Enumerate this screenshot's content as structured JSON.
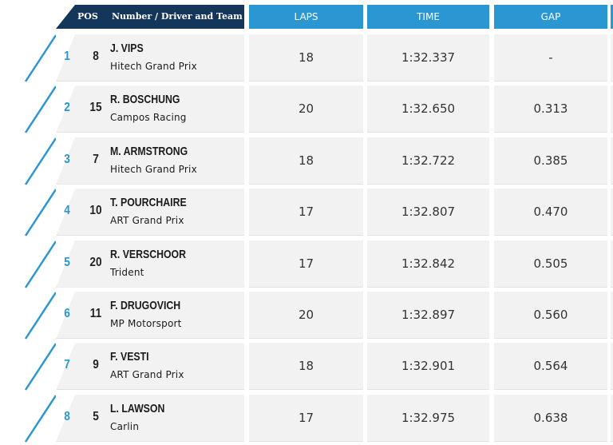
{
  "header": {
    "pos_label": "POS",
    "number_driver_team_label": "Number / Driver and Team",
    "laps_label": "LAPS",
    "time_label": "TIME",
    "gap_label": "GAP"
  },
  "colors": {
    "header_dark": "#13365a",
    "header_blue": "#2a97d3",
    "row_bg": "#f2f2f2",
    "accent": "#2a97d3"
  },
  "rows": [
    {
      "pos": "1",
      "number": "8",
      "driver": "J. VIPS",
      "team": "Hitech Grand Prix",
      "laps": "18",
      "time": "1:32.337",
      "gap": "-"
    },
    {
      "pos": "2",
      "number": "15",
      "driver": "R. BOSCHUNG",
      "team": "Campos Racing",
      "laps": "20",
      "time": "1:32.650",
      "gap": "0.313"
    },
    {
      "pos": "3",
      "number": "7",
      "driver": "M. ARMSTRONG",
      "team": "Hitech Grand Prix",
      "laps": "18",
      "time": "1:32.722",
      "gap": "0.385"
    },
    {
      "pos": "4",
      "number": "10",
      "driver": "T. POURCHAIRE",
      "team": "ART Grand Prix",
      "laps": "17",
      "time": "1:32.807",
      "gap": "0.470"
    },
    {
      "pos": "5",
      "number": "20",
      "driver": "R. VERSCHOOR",
      "team": "Trident",
      "laps": "17",
      "time": "1:32.842",
      "gap": "0.505"
    },
    {
      "pos": "6",
      "number": "11",
      "driver": "F. DRUGOVICH",
      "team": "MP Motorsport",
      "laps": "20",
      "time": "1:32.897",
      "gap": "0.560"
    },
    {
      "pos": "7",
      "number": "9",
      "driver": "F. VESTI",
      "team": "ART Grand Prix",
      "laps": "18",
      "time": "1:32.901",
      "gap": "0.564"
    },
    {
      "pos": "8",
      "number": "5",
      "driver": "L. LAWSON",
      "team": "Carlin",
      "laps": "17",
      "time": "1:32.975",
      "gap": "0.638"
    }
  ]
}
